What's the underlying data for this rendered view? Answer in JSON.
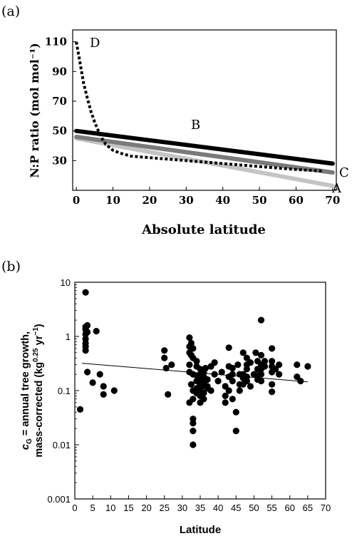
{
  "chart_data": [
    {
      "panel_label": "(a)",
      "type": "line",
      "xlabel": "Absolute  latitude",
      "ylabel": "N:P  ratio (mol mol⁻¹)",
      "xlim": [
        -1,
        71
      ],
      "ylim": [
        10,
        118
      ],
      "xticks": [
        "0",
        "10",
        "20",
        "30",
        "40",
        "50",
        "60",
        "70"
      ],
      "yticks": [
        "30",
        "50",
        "70",
        "90",
        "110"
      ],
      "grid": false,
      "series": [
        {
          "name": "A",
          "color": "#c4c4c4",
          "style": "solid",
          "x": [
            0,
            70
          ],
          "y": [
            45,
            13
          ]
        },
        {
          "name": "B",
          "color": "#000000",
          "style": "solid",
          "x": [
            0,
            70
          ],
          "y": [
            50,
            28
          ]
        },
        {
          "name": "C",
          "color": "#7a7a7a",
          "style": "solid",
          "x": [
            0,
            70
          ],
          "y": [
            46,
            22
          ]
        },
        {
          "name": "D",
          "color": "#000000",
          "style": "dotted",
          "x": [
            0,
            1,
            2,
            3,
            4,
            5,
            6,
            7,
            8,
            10,
            12,
            15,
            20,
            30,
            40,
            50,
            60,
            67
          ],
          "y": [
            110,
            96,
            82,
            72,
            63,
            56,
            50,
            45,
            41,
            37,
            35,
            33,
            32,
            30,
            28,
            26,
            24,
            23
          ]
        }
      ]
    },
    {
      "panel_label": "(b)",
      "type": "scatter",
      "log_y": true,
      "xlabel": "Latitude",
      "ylabel_line1": "c",
      "ylabel_sub": "G",
      "ylabel_line1_rest": " = annual tree growth,",
      "ylabel_line2": "mass-corrected (kg",
      "ylabel_sup1": "0.25",
      "ylabel_mid": " yr",
      "ylabel_sup2": "−1",
      "ylabel_end": ")",
      "xlim": [
        0,
        70
      ],
      "ylim": [
        0.001,
        10
      ],
      "xticks": [
        "0",
        "5",
        "10",
        "15",
        "20",
        "25",
        "30",
        "35",
        "40",
        "45",
        "50",
        "55",
        "60",
        "65",
        "70"
      ],
      "yticks": [
        "0.001",
        "0.01",
        "0.1",
        "1",
        "10"
      ],
      "grid": false,
      "trendline": {
        "x": [
          2,
          65
        ],
        "y": [
          0.32,
          0.145
        ]
      },
      "points": [
        [
          1.5,
          0.045
        ],
        [
          3,
          6.5
        ],
        [
          3,
          1.5
        ],
        [
          3,
          1.35
        ],
        [
          3,
          1.1
        ],
        [
          3,
          0.9
        ],
        [
          3,
          0.75
        ],
        [
          3,
          0.65
        ],
        [
          3,
          0.55
        ],
        [
          3.5,
          1.6
        ],
        [
          3.5,
          1.2
        ],
        [
          3.5,
          0.22
        ],
        [
          5,
          0.14
        ],
        [
          6,
          1.25
        ],
        [
          7,
          0.2
        ],
        [
          8,
          0.12
        ],
        [
          8,
          0.085
        ],
        [
          11,
          0.1
        ],
        [
          25,
          0.55
        ],
        [
          25,
          0.4
        ],
        [
          25.5,
          0.26
        ],
        [
          26,
          0.085
        ],
        [
          27,
          0.3
        ],
        [
          32,
          0.95
        ],
        [
          32,
          0.65
        ],
        [
          32,
          0.5
        ],
        [
          32,
          0.3
        ],
        [
          32,
          0.22
        ],
        [
          32,
          0.06
        ],
        [
          32.5,
          0.75
        ],
        [
          32.5,
          0.45
        ],
        [
          32.5,
          0.13
        ],
        [
          33,
          0.6
        ],
        [
          33,
          0.4
        ],
        [
          33,
          0.2
        ],
        [
          33,
          0.1
        ],
        [
          33,
          0.07
        ],
        [
          33,
          0.03
        ],
        [
          33,
          0.025
        ],
        [
          33,
          0.018
        ],
        [
          33,
          0.01
        ],
        [
          34,
          0.35
        ],
        [
          34,
          0.28
        ],
        [
          34,
          0.19
        ],
        [
          34,
          0.15
        ],
        [
          34,
          0.11
        ],
        [
          34,
          0.09
        ],
        [
          35,
          0.25
        ],
        [
          35,
          0.2
        ],
        [
          35,
          0.16
        ],
        [
          35,
          0.13
        ],
        [
          35,
          0.1
        ],
        [
          35,
          0.08
        ],
        [
          35,
          0.06
        ],
        [
          36,
          0.22
        ],
        [
          36,
          0.18
        ],
        [
          36,
          0.14
        ],
        [
          36,
          0.12
        ],
        [
          36,
          0.09
        ],
        [
          36,
          0.07
        ],
        [
          36.5,
          0.26
        ],
        [
          37,
          0.16
        ],
        [
          37,
          0.12
        ],
        [
          37,
          0.11
        ],
        [
          38,
          0.1
        ],
        [
          38,
          0.28
        ],
        [
          39,
          0.2
        ],
        [
          39,
          0.33
        ],
        [
          40,
          0.15
        ],
        [
          41,
          0.22
        ],
        [
          42,
          0.12
        ],
        [
          42,
          0.08
        ],
        [
          42,
          0.06
        ],
        [
          43,
          0.62
        ],
        [
          43,
          0.28
        ],
        [
          43,
          0.18
        ],
        [
          43,
          0.1
        ],
        [
          44,
          0.26
        ],
        [
          44,
          0.2
        ],
        [
          44,
          0.15
        ],
        [
          44,
          0.07
        ],
        [
          45,
          0.04
        ],
        [
          45,
          0.018
        ],
        [
          45.5,
          0.3
        ],
        [
          46,
          0.2
        ],
        [
          46,
          0.13
        ],
        [
          46,
          0.1
        ],
        [
          47,
          0.5
        ],
        [
          47,
          0.2
        ],
        [
          47,
          0.17
        ],
        [
          47,
          0.13
        ],
        [
          48,
          0.4
        ],
        [
          48,
          0.3
        ],
        [
          48,
          0.25
        ],
        [
          48,
          0.18
        ],
        [
          48,
          0.15
        ],
        [
          49,
          0.12
        ],
        [
          49,
          0.33
        ],
        [
          50,
          0.2
        ],
        [
          50.5,
          0.5
        ],
        [
          51,
          0.35
        ],
        [
          51,
          0.25
        ],
        [
          51,
          0.19
        ],
        [
          51,
          0.16
        ],
        [
          52,
          2.0
        ],
        [
          52,
          0.45
        ],
        [
          52,
          0.3
        ],
        [
          52,
          0.25
        ],
        [
          52,
          0.2
        ],
        [
          52,
          0.15
        ],
        [
          53,
          0.35
        ],
        [
          53,
          0.28
        ],
        [
          55,
          0.6
        ],
        [
          55,
          0.35
        ],
        [
          55,
          0.28
        ],
        [
          55,
          0.22
        ],
        [
          55,
          0.13
        ],
        [
          55,
          0.095
        ],
        [
          56,
          0.25
        ],
        [
          57,
          0.3
        ],
        [
          57,
          0.2
        ],
        [
          62,
          0.3
        ],
        [
          62,
          0.18
        ],
        [
          63,
          0.15
        ],
        [
          65,
          0.28
        ]
      ]
    }
  ]
}
